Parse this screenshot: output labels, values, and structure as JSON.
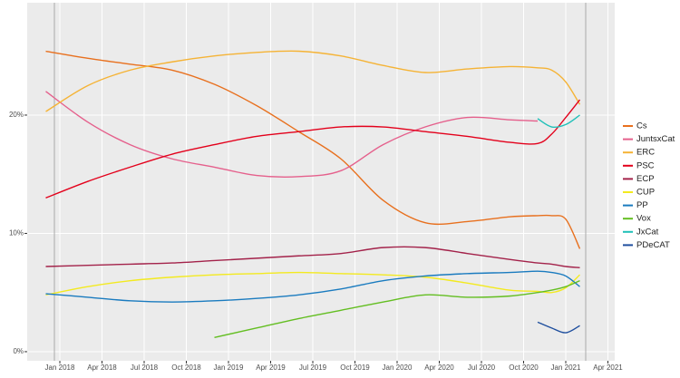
{
  "chart_data": {
    "type": "line",
    "x": [
      "2017-12",
      "2018-03",
      "2018-06",
      "2018-09",
      "2018-12",
      "2019-03",
      "2019-06",
      "2019-09",
      "2019-12",
      "2020-03",
      "2020-06",
      "2020-09",
      "2020-11",
      "2020-12",
      "2021-01",
      "2021-02"
    ],
    "series": [
      {
        "name": "Cs",
        "color": "#e8701e",
        "values": [
          25.4,
          24.8,
          24.3,
          23.8,
          22.6,
          20.8,
          18.6,
          16.3,
          12.8,
          10.9,
          11,
          11.4,
          11.5,
          11.5,
          11.2,
          8.7
        ]
      },
      {
        "name": "JuntsxCat",
        "color": "#e5608c",
        "values": [
          22,
          19.4,
          17.5,
          16.3,
          15.6,
          14.9,
          14.8,
          15.3,
          17.5,
          19,
          19.8,
          19.6,
          19.5,
          null,
          null,
          null
        ]
      },
      {
        "name": "ERC",
        "color": "#f5b335",
        "values": [
          20.3,
          22.5,
          23.8,
          24.5,
          25,
          25.3,
          25.4,
          25,
          24.2,
          23.6,
          23.9,
          24.1,
          24,
          23.8,
          22.8,
          20.9
        ]
      },
      {
        "name": "PSC",
        "color": "#e3001b",
        "values": [
          13,
          14.4,
          15.6,
          16.7,
          17.5,
          18.2,
          18.6,
          19,
          19,
          18.6,
          18.2,
          17.7,
          17.6,
          18.4,
          19.8,
          21.3
        ]
      },
      {
        "name": "ECP",
        "color": "#a3224a",
        "values": [
          7.2,
          7.3,
          7.4,
          7.5,
          7.7,
          7.9,
          8.1,
          8.3,
          8.8,
          8.8,
          8.3,
          7.8,
          7.5,
          7.4,
          7.2,
          7.1
        ]
      },
      {
        "name": "CUP",
        "color": "#f3ea1f",
        "values": [
          4.8,
          5.5,
          6,
          6.3,
          6.5,
          6.6,
          6.7,
          6.6,
          6.5,
          6.3,
          5.8,
          5.2,
          5.1,
          5,
          5.4,
          6.5
        ]
      },
      {
        "name": "PP",
        "color": "#1a7bbf",
        "values": [
          4.9,
          4.6,
          4.3,
          4.2,
          4.3,
          4.5,
          4.8,
          5.3,
          6,
          6.4,
          6.6,
          6.7,
          6.8,
          6.7,
          6.4,
          5.5
        ]
      },
      {
        "name": "Vox",
        "color": "#63be21",
        "values": [
          null,
          null,
          null,
          null,
          1.2,
          2,
          2.8,
          3.5,
          4.2,
          4.8,
          4.6,
          4.7,
          5,
          5.2,
          5.5,
          6
        ]
      },
      {
        "name": "JxCat",
        "color": "#20c0b8",
        "values": [
          null,
          null,
          null,
          null,
          null,
          null,
          null,
          null,
          null,
          null,
          null,
          null,
          19.7,
          19,
          19.2,
          20
        ]
      },
      {
        "name": "PDeCAT",
        "color": "#1f4f9e",
        "values": [
          null,
          null,
          null,
          null,
          null,
          null,
          null,
          null,
          null,
          null,
          null,
          null,
          2.5,
          2,
          1.6,
          2.2
        ]
      }
    ],
    "xlim": [
      "2017-10",
      "2021-04"
    ],
    "xticks": [
      {
        "value": "2018-01",
        "label": "Jan 2018"
      },
      {
        "value": "2018-04",
        "label": "Apr 2018"
      },
      {
        "value": "2018-07",
        "label": "Jul 2018"
      },
      {
        "value": "2018-10",
        "label": "Oct 2018"
      },
      {
        "value": "2019-01",
        "label": "Jan 2019"
      },
      {
        "value": "2019-04",
        "label": "Apr 2019"
      },
      {
        "value": "2019-07",
        "label": "Jul 2019"
      },
      {
        "value": "2019-10",
        "label": "Oct 2019"
      },
      {
        "value": "2020-01",
        "label": "Jan 2020"
      },
      {
        "value": "2020-04",
        "label": "Apr 2020"
      },
      {
        "value": "2020-07",
        "label": "Jul 2020"
      },
      {
        "value": "2020-10",
        "label": "Oct 2020"
      },
      {
        "value": "2021-01",
        "label": "Jan 2021"
      },
      {
        "value": "2021-04",
        "label": "Apr 2021"
      }
    ],
    "ylim": [
      -0.8,
      29.5
    ],
    "yticks": [
      {
        "value": 0,
        "label": "0%"
      },
      {
        "value": 10,
        "label": "10%"
      },
      {
        "value": 20,
        "label": "20%"
      }
    ],
    "grid": true,
    "legend": "right"
  }
}
